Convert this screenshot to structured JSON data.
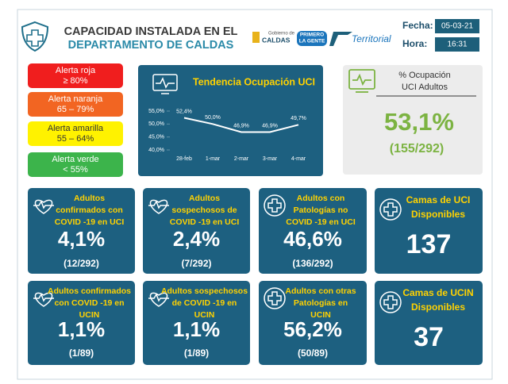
{
  "header": {
    "title_lines": [
      "CAPACIDAD INSTALADA EN EL",
      "DEPARTAMENTO DE CALDAS"
    ],
    "logos": [
      "Gobierno de",
      "CALDAS",
      "PRIMERO",
      "LA GENTE",
      "Territorial"
    ],
    "fecha_label": "Fecha:",
    "fecha": "05-03-21",
    "hora_label": "Hora:",
    "hora": "16:31"
  },
  "alerts": [
    {
      "label": "Alerta roja",
      "range": "≥ 80%",
      "color": "#f01e1e"
    },
    {
      "label": "Alerta naranja",
      "range": "65 – 79%",
      "color": "#f26522"
    },
    {
      "label": "Alerta amarilla",
      "range": "55 – 64%",
      "color": "#fff200"
    },
    {
      "label": "Alerta verde",
      "range": "< 55%",
      "color": "#3cb44b"
    }
  ],
  "trend": {
    "type": "line",
    "title": "Tendencia Ocupación UCI",
    "categories": [
      "28-feb",
      "1-mar",
      "2-mar",
      "3-mar",
      "4-mar"
    ],
    "values": [
      52.4,
      50.0,
      46.9,
      46.9,
      49.7
    ],
    "value_labels": [
      "52,4%",
      "50,0%",
      "46,9%",
      "46,9%",
      "49,7%"
    ],
    "color": "#ffffff",
    "ylim": [
      40,
      55
    ],
    "yticks": [
      {
        "value": 40,
        "label": "40,0%"
      },
      {
        "value": 45,
        "label": "45,0%"
      },
      {
        "value": 50,
        "label": "50,0%"
      },
      {
        "value": 55,
        "label": "55,0%"
      }
    ]
  },
  "occupancy": {
    "title_lines": [
      "% Ocupación",
      "UCI Adultos"
    ],
    "value": "53,1%",
    "detail": "(155/292)"
  },
  "cards": [
    {
      "title_lines": [
        "Adultos",
        "confirmados con",
        "COVID -19 en UCI"
      ],
      "value": "4,1%",
      "detail": "(12/292)"
    },
    {
      "title_lines": [
        "Adultos",
        "sospechosos de",
        "COVID -19 en UCI"
      ],
      "value": "2,4%",
      "detail": "(7/292)"
    },
    {
      "title_lines": [
        "Adultos con",
        "Patologías no",
        "COVID -19 en UCI"
      ],
      "value": "46,6%",
      "detail": "(136/292)"
    },
    {
      "title_lines": [
        "Camas de UCI",
        "Disponibles"
      ],
      "value": "137"
    },
    {
      "title_lines": [
        "Adultos confirmados",
        "con COVID -19 en",
        "UCIN"
      ],
      "value": "1,1%",
      "detail": "(1/89)"
    },
    {
      "title_lines": [
        "Adultos sospechosos",
        "de COVID -19 en",
        "UCIN"
      ],
      "value": "1,1%",
      "detail": "(1/89)"
    },
    {
      "title_lines": [
        "Adultos con otras",
        "Patologías en",
        "UCIN"
      ],
      "value": "56,2%",
      "detail": "(50/89)"
    },
    {
      "title_lines": [
        "Camas de UCIN",
        "Disponibles"
      ],
      "value": "37"
    }
  ]
}
